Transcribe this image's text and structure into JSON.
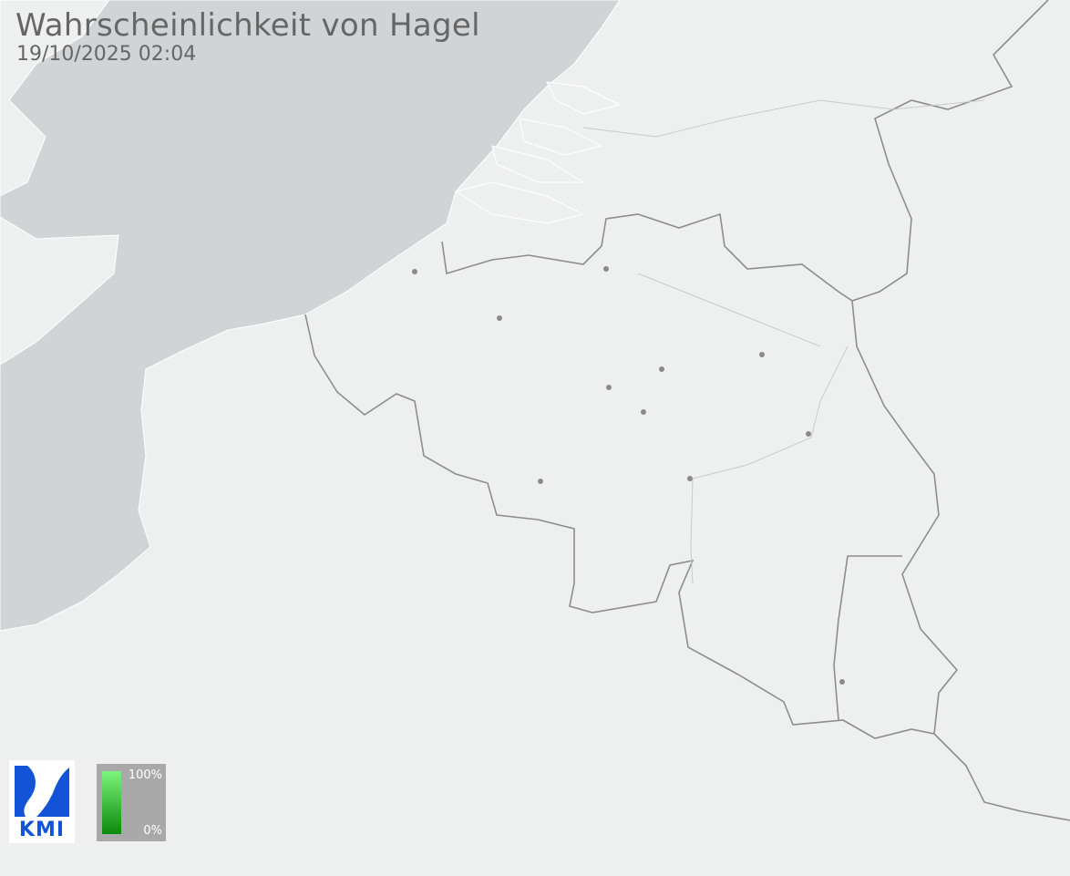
{
  "header": {
    "title": "Wahrscheinlichkeit von Hagel",
    "timestamp": "19/10/2025 02:04"
  },
  "legend": {
    "max_label": "100%",
    "min_label": "0%",
    "color_max": "#7cf57c",
    "color_min": "#0a8a0a"
  },
  "logo": {
    "text": "KMI",
    "color": "#1353d8"
  },
  "map": {
    "sea_color": "#d1d4d6",
    "land_color": "#eef0ef",
    "border_color": "#8d8d8d",
    "city_marker_count_note": null
  }
}
